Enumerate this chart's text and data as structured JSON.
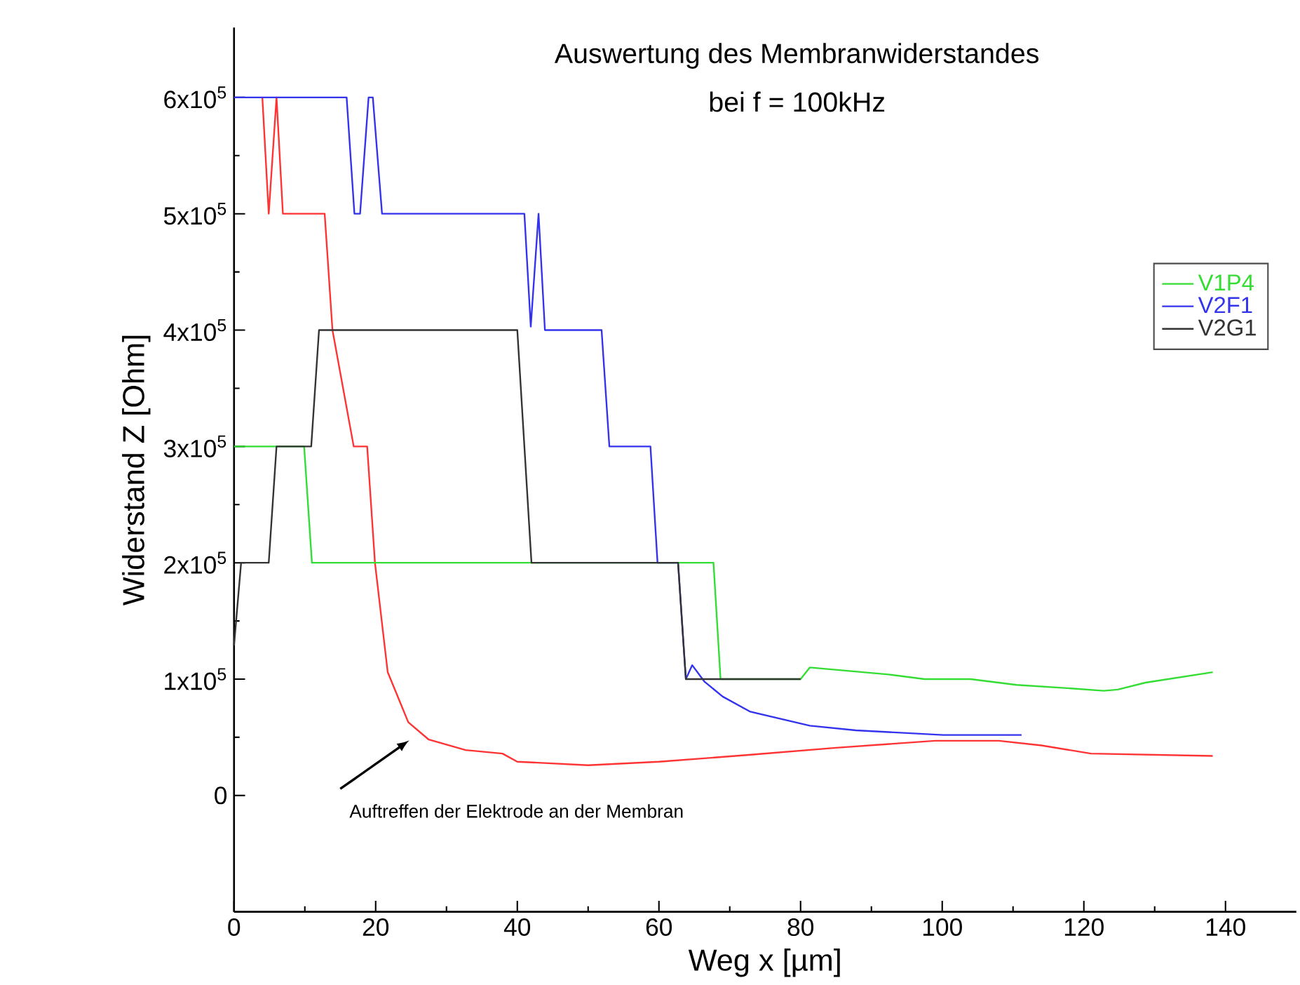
{
  "chart_data": {
    "type": "line",
    "title": "Auswertung des Membranwiderstandes",
    "subtitle": "bei f = 100kHz",
    "xlabel": "Weg x [µm]",
    "ylabel": "Widerstand Z [Ohm]",
    "xlim": [
      0,
      150
    ],
    "ylim": [
      -100000,
      660000
    ],
    "xticks": [
      0,
      20,
      40,
      60,
      80,
      100,
      120,
      140
    ],
    "yticks": [
      {
        "value": 0,
        "label": "0"
      },
      {
        "value": 100000,
        "label": "1x10$^{5}$"
      },
      {
        "value": 200000,
        "label": "2x10$^{5}$"
      },
      {
        "value": 300000,
        "label": "3x10$^{5}$"
      },
      {
        "value": 400000,
        "label": "4x10$^{5}$"
      },
      {
        "value": 500000,
        "label": "5x10$^{5}$"
      },
      {
        "value": 600000,
        "label": "6x10$^{5}$"
      }
    ],
    "legend": "right",
    "annotations": [
      "Auftreffen der Elektrode an der Membran"
    ],
    "series": [
      {
        "color": "#ff3333",
        "x": [
          4.0,
          4.9,
          6.0,
          6.9,
          12.8,
          13.9,
          16.9,
          18.8,
          19.9,
          21.7,
          24.6,
          27.5,
          32.7,
          37.9,
          40,
          50,
          60,
          73,
          85,
          99,
          108,
          114,
          121,
          138.2
        ],
        "values": [
          600000,
          500000,
          600000,
          500000,
          500000,
          400000,
          300000,
          300000,
          200000,
          106000,
          63000,
          48000,
          39000,
          36000,
          29000,
          26000,
          29000,
          35000,
          41000,
          47000,
          47000,
          43000,
          36000,
          34000
        ]
      },
      {
        "name": "V1P4",
        "color": "#33dd33",
        "x": [
          0,
          9.9,
          11.0,
          67.7,
          68.7,
          80.0,
          81.3,
          92.4,
          97.5,
          104,
          110.5,
          118.2,
          122.8,
          124.8,
          128.7,
          138.2
        ],
        "values": [
          300000,
          300000,
          200000,
          200000,
          100000,
          100000,
          110000,
          104000,
          100000,
          100000,
          95000,
          92000,
          90000,
          91000,
          97000,
          106000
        ]
      },
      {
        "name": "V2F1",
        "color": "#3333ee",
        "x": [
          0,
          15.9,
          17.0,
          17.8,
          19.0,
          19.6,
          20.9,
          41.0,
          41.9,
          43.0,
          43.9,
          51.9,
          53.0,
          58.8,
          59.8,
          62.7,
          63.8,
          64.7,
          66.4,
          69.0,
          72.9,
          81.3,
          87.8,
          100.1,
          111.2
        ],
        "values": [
          600000,
          600000,
          500000,
          500000,
          600000,
          600000,
          500000,
          500000,
          403000,
          500000,
          400000,
          400000,
          300000,
          300000,
          200000,
          200000,
          100000,
          112000,
          98000,
          85000,
          72000,
          60000,
          56000,
          52000,
          52000
        ]
      },
      {
        "name": "V2G1",
        "color": "#333333",
        "x": [
          0,
          1.0,
          4.9,
          6.0,
          10.9,
          12.0,
          40.0,
          42.0,
          62.7,
          63.8,
          80.0
        ],
        "values": [
          129000,
          200000,
          200000,
          300000,
          300000,
          400000,
          400000,
          200000,
          200000,
          100000,
          100000
        ]
      }
    ]
  }
}
